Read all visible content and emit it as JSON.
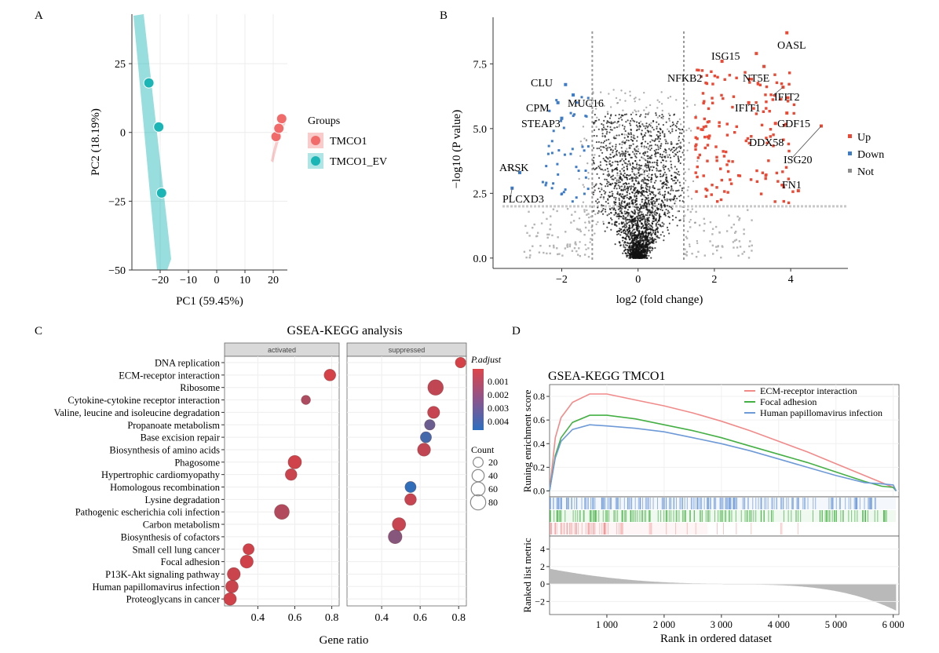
{
  "panel_letters": [
    "A",
    "B",
    "C",
    "D"
  ],
  "colors": {
    "tmco1": "#f26b6b",
    "tmco1_ev": "#1bb5b5",
    "up": "#ea4a35",
    "down": "#3f7cc8",
    "not": "#8d8d8d",
    "ecm": "#f28a8a",
    "focal": "#44b044",
    "hpv": "#6e9ad8"
  },
  "chart_data": [
    {
      "panel": "A",
      "type": "scatter",
      "xlabel": "PC1 (59.45%)",
      "ylabel": "PC2 (18.19%)",
      "xlim": [
        -30,
        25
      ],
      "ylim": [
        -50,
        43
      ],
      "xticks": [
        -20,
        -10,
        0,
        10,
        20
      ],
      "yticks": [
        -50,
        -25,
        0,
        25
      ],
      "legend_title": "Groups",
      "legend_position": "right",
      "series": [
        {
          "name": "TMCO1",
          "points": [
            [
              23,
              5
            ],
            [
              21,
              -1.5
            ],
            [
              22,
              1.5
            ]
          ]
        },
        {
          "name": "TMCO1_EV",
          "points": [
            [
              -24,
              18
            ],
            [
              -20.5,
              2
            ],
            [
              -19.5,
              -22
            ]
          ]
        }
      ]
    },
    {
      "panel": "B",
      "type": "scatter",
      "xlabel": "log2 (fold change)",
      "ylabel": "−log10 (P value)",
      "xlim": [
        -3.8,
        5.5
      ],
      "ylim": [
        -0.4,
        9.3
      ],
      "xticks": [
        -2,
        0,
        2,
        4
      ],
      "yticks": [
        0.0,
        2.5,
        5.0,
        7.5
      ],
      "thresholds": {
        "x": [
          -1.2,
          1.2
        ],
        "y": 2.0
      },
      "legend": [
        "Up",
        "Down",
        "Not"
      ],
      "legend_position": "right",
      "labeled_genes": [
        {
          "gene": "OASL",
          "x": 3.9,
          "y": 8.7
        },
        {
          "gene": "ISG15",
          "x": 3.1,
          "y": 7.9
        },
        {
          "gene": "NT5E",
          "x": 3.3,
          "y": 7.4
        },
        {
          "gene": "NFKB2",
          "x": 2.2,
          "y": 7.6
        },
        {
          "gene": "IFIT2",
          "x": 3.8,
          "y": 6.6
        },
        {
          "gene": "IFIT1",
          "x": 2.9,
          "y": 6.0
        },
        {
          "gene": "GDF15",
          "x": 3.9,
          "y": 5.6
        },
        {
          "gene": "DDX58",
          "x": 3.6,
          "y": 5.2
        },
        {
          "gene": "ISG20",
          "x": 4.8,
          "y": 5.1
        },
        {
          "gene": "FN1",
          "x": 4.2,
          "y": 2.6
        },
        {
          "gene": "CLU",
          "x": -1.9,
          "y": 6.7
        },
        {
          "gene": "MUC16",
          "x": -1.7,
          "y": 6.3
        },
        {
          "gene": "CPM",
          "x": -2.1,
          "y": 6.0
        },
        {
          "gene": "STEAP3",
          "x": -2.0,
          "y": 5.4
        },
        {
          "gene": "ARSK",
          "x": -3.1,
          "y": 3.3
        },
        {
          "gene": "PLCXD3",
          "x": -3.3,
          "y": 2.7
        }
      ]
    },
    {
      "panel": "C",
      "type": "scatter",
      "title": "GSEA-KEGG analysis",
      "xlabel": "Gene ratio",
      "facets": [
        "activated",
        "suppressed"
      ],
      "xlim": [
        0.22,
        0.84
      ],
      "xticks": [
        0.4,
        0.6,
        0.8
      ],
      "color_legend": {
        "title": "P.adjust",
        "ticks": [
          "0.001",
          "0.002",
          "0.003",
          "0.004"
        ]
      },
      "size_legend": {
        "title": "Count",
        "ticks": [
          "20",
          "40",
          "60",
          "80"
        ]
      },
      "categories": [
        "DNA replication",
        "ECM-receptor interaction",
        "Ribosome",
        "Cytokine-cytokine receptor interaction",
        "Valine, leucine and isoleucine degradation",
        "Propanoate metabolism",
        "Base excision repair",
        "Biosynthesis of amino acids",
        "Phagosome",
        "Hypertrophic cardiomyopathy",
        "Homologous recombination",
        "Lysine degradation",
        "Pathogenic escherichia coli infection",
        "Carbon metabolism",
        "Biosynthesis of cofactors",
        "Small cell lung cancer",
        "Focal adhesion",
        "P13K-Akt signaling pathway",
        "Human papillomavirus infection",
        "Proteoglycans in cancer"
      ],
      "points": [
        {
          "term": "DNA replication",
          "facet": "suppressed",
          "ratio": 0.81,
          "count": 25,
          "p": 0.0008
        },
        {
          "term": "ECM-receptor interaction",
          "facet": "activated",
          "ratio": 0.79,
          "count": 35,
          "p": 0.0008
        },
        {
          "term": "Ribosome",
          "facet": "suppressed",
          "ratio": 0.68,
          "count": 85,
          "p": 0.0012
        },
        {
          "term": "Cytokine-cytokine receptor interaction",
          "facet": "activated",
          "ratio": 0.66,
          "count": 15,
          "p": 0.0016
        },
        {
          "term": "Valine, leucine and isoleucine degradation",
          "facet": "suppressed",
          "ratio": 0.67,
          "count": 40,
          "p": 0.0011
        },
        {
          "term": "Propanoate metabolism",
          "facet": "suppressed",
          "ratio": 0.65,
          "count": 25,
          "p": 0.003
        },
        {
          "term": "Base excision repair",
          "facet": "suppressed",
          "ratio": 0.63,
          "count": 30,
          "p": 0.0038
        },
        {
          "term": "Biosynthesis of amino acids",
          "facet": "suppressed",
          "ratio": 0.62,
          "count": 50,
          "p": 0.0012
        },
        {
          "term": "Phagosome",
          "facet": "activated",
          "ratio": 0.6,
          "count": 55,
          "p": 0.0009
        },
        {
          "term": "Hypertrophic cardiomyopathy",
          "facet": "activated",
          "ratio": 0.58,
          "count": 35,
          "p": 0.001
        },
        {
          "term": "Homologous recombination",
          "facet": "suppressed",
          "ratio": 0.55,
          "count": 30,
          "p": 0.0042
        },
        {
          "term": "Lysine degradation",
          "facet": "suppressed",
          "ratio": 0.55,
          "count": 35,
          "p": 0.0011
        },
        {
          "term": "Pathogenic escherichia coli infection",
          "facet": "activated",
          "ratio": 0.53,
          "count": 75,
          "p": 0.0015
        },
        {
          "term": "Carbon metabolism",
          "facet": "suppressed",
          "ratio": 0.49,
          "count": 55,
          "p": 0.0011
        },
        {
          "term": "Biosynthesis of cofactors",
          "facet": "suppressed",
          "ratio": 0.47,
          "count": 60,
          "p": 0.0024
        },
        {
          "term": "Small cell lung cancer",
          "facet": "activated",
          "ratio": 0.35,
          "count": 30,
          "p": 0.0009
        },
        {
          "term": "Focal adhesion",
          "facet": "activated",
          "ratio": 0.34,
          "count": 50,
          "p": 0.0009
        },
        {
          "term": "P13K-Akt signaling pathway",
          "facet": "activated",
          "ratio": 0.27,
          "count": 50,
          "p": 0.001
        },
        {
          "term": "Human papillomavirus infection",
          "facet": "activated",
          "ratio": 0.26,
          "count": 45,
          "p": 0.001
        },
        {
          "term": "Proteoglycans in cancer",
          "facet": "activated",
          "ratio": 0.25,
          "count": 45,
          "p": 0.0009
        }
      ]
    },
    {
      "panel": "D",
      "type": "line",
      "title": "GSEA-KEGG TMCO1",
      "ylabel": "Runing enrichment score",
      "xlabel": "Rank in ordered dataset",
      "xlim": [
        0,
        6100
      ],
      "ylim": [
        -0.05,
        0.9
      ],
      "xticks": [
        1000,
        2000,
        3000,
        4000,
        5000,
        6000
      ],
      "xtick_labels": [
        "1 000",
        "2 000",
        "3 000",
        "4 000",
        "5 000",
        "6 000"
      ],
      "yticks": [
        0.0,
        0.2,
        0.4,
        0.6,
        0.8
      ],
      "ytick_labels": [
        "0.0",
        "0.2",
        "0.4",
        "0.6",
        "0.8"
      ],
      "legend_position": "top-right",
      "series": [
        {
          "name": "ECM-receptor interaction",
          "points": [
            [
              0,
              0
            ],
            [
              100,
              0.45
            ],
            [
              200,
              0.62
            ],
            [
              400,
              0.75
            ],
            [
              700,
              0.82
            ],
            [
              1000,
              0.82
            ],
            [
              1500,
              0.77
            ],
            [
              2000,
              0.72
            ],
            [
              2500,
              0.66
            ],
            [
              3000,
              0.59
            ],
            [
              3500,
              0.51
            ],
            [
              4000,
              0.42
            ],
            [
              4500,
              0.33
            ],
            [
              5000,
              0.23
            ],
            [
              5500,
              0.13
            ],
            [
              5800,
              0.07
            ],
            [
              6000,
              0.03
            ],
            [
              6050,
              0
            ]
          ]
        },
        {
          "name": "Focal adhesion",
          "points": [
            [
              0,
              0
            ],
            [
              100,
              0.3
            ],
            [
              200,
              0.45
            ],
            [
              400,
              0.58
            ],
            [
              700,
              0.64
            ],
            [
              1000,
              0.64
            ],
            [
              1500,
              0.61
            ],
            [
              2000,
              0.56
            ],
            [
              2500,
              0.51
            ],
            [
              3000,
              0.45
            ],
            [
              3500,
              0.38
            ],
            [
              4000,
              0.31
            ],
            [
              4500,
              0.24
            ],
            [
              5000,
              0.16
            ],
            [
              5500,
              0.08
            ],
            [
              5800,
              0.04
            ],
            [
              6000,
              0.03
            ],
            [
              6050,
              0
            ]
          ]
        },
        {
          "name": "Human papillomavirus infection",
          "points": [
            [
              0,
              0
            ],
            [
              100,
              0.28
            ],
            [
              200,
              0.42
            ],
            [
              400,
              0.52
            ],
            [
              700,
              0.56
            ],
            [
              1000,
              0.55
            ],
            [
              1500,
              0.53
            ],
            [
              2000,
              0.5
            ],
            [
              2500,
              0.45
            ],
            [
              3000,
              0.4
            ],
            [
              3500,
              0.34
            ],
            [
              4000,
              0.27
            ],
            [
              4500,
              0.2
            ],
            [
              5000,
              0.13
            ],
            [
              5500,
              0.07
            ],
            [
              5800,
              0.06
            ],
            [
              6000,
              0.05
            ],
            [
              6050,
              0
            ]
          ]
        }
      ],
      "ranked_metric": {
        "ylabel": "Ranked list metric",
        "ylim": [
          -3.5,
          5.5
        ],
        "yticks": [
          -2,
          0,
          2,
          4
        ],
        "yticklabels": [
          "−2",
          "0",
          "2",
          "4"
        ]
      }
    }
  ]
}
